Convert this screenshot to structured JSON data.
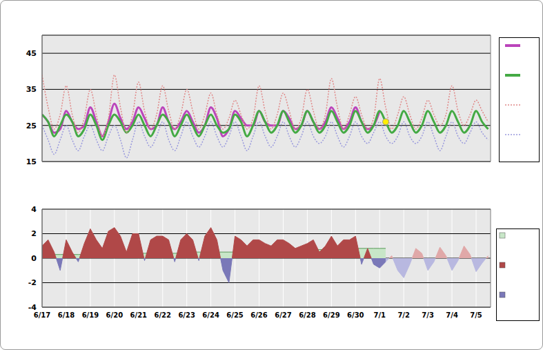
{
  "chart_data": [
    {
      "type": "line",
      "x": [
        0,
        0.25,
        0.5,
        0.75,
        1,
        1.25,
        1.5,
        1.75,
        2,
        2.25,
        2.5,
        2.75,
        3,
        3.25,
        3.5,
        3.75,
        4,
        4.25,
        4.5,
        4.75,
        5,
        5.25,
        5.5,
        5.75,
        6,
        6.25,
        6.5,
        6.75,
        7,
        7.25,
        7.5,
        7.75,
        8,
        8.25,
        8.5,
        8.75,
        9,
        9.25,
        9.5,
        9.75,
        10,
        10.25,
        10.5,
        10.75,
        11,
        11.25,
        11.5,
        11.75,
        12,
        12.25,
        12.5,
        12.75,
        13,
        13.25,
        13.5,
        13.75,
        14,
        14.25,
        14.5,
        14.75,
        15,
        15.25,
        15.5,
        15.75,
        16,
        16.25,
        16.5,
        16.75,
        17,
        17.25,
        17.5,
        17.75,
        18,
        18.25,
        18.5
      ],
      "xlim": [
        0,
        18.6
      ],
      "xticks": [
        {
          "value": 0,
          "label": "6/17"
        },
        {
          "value": 1,
          "label": "6/18"
        },
        {
          "value": 2,
          "label": "6/19"
        },
        {
          "value": 3,
          "label": "6/20"
        },
        {
          "value": 4,
          "label": "6/21"
        },
        {
          "value": 5,
          "label": "6/22"
        },
        {
          "value": 6,
          "label": "6/23"
        },
        {
          "value": 7,
          "label": "6/24"
        },
        {
          "value": 8,
          "label": "6/25"
        },
        {
          "value": 9,
          "label": "6/26"
        },
        {
          "value": 10,
          "label": "6/27"
        },
        {
          "value": 11,
          "label": "6/28"
        },
        {
          "value": 12,
          "label": "6/29"
        },
        {
          "value": 13,
          "label": "6/30"
        },
        {
          "value": 14,
          "label": "7/1"
        },
        {
          "value": 15,
          "label": "7/2"
        },
        {
          "value": 16,
          "label": "7/3"
        },
        {
          "value": 17,
          "label": "7/4"
        },
        {
          "value": 18,
          "label": "7/5"
        }
      ],
      "ylim": [
        15,
        50
      ],
      "yticks": [
        15,
        25,
        35,
        45
      ],
      "grid": true,
      "tick_labels": "y",
      "series": [
        {
          "color": "#bb44bb",
          "line_style": "solid",
          "values": [
            28,
            26,
            23,
            24,
            29,
            26,
            24,
            25,
            30,
            26,
            22,
            26,
            31,
            27,
            24,
            26,
            30,
            27,
            24,
            25,
            30,
            26,
            24,
            26,
            29,
            26,
            23,
            25,
            30,
            27,
            22,
            24,
            29,
            27,
            25,
            25,
            29,
            26,
            25,
            25,
            29,
            27,
            24,
            25,
            29,
            26,
            24,
            26,
            30,
            27,
            24,
            26,
            30,
            26,
            24,
            25,
            29,
            null,
            null,
            null,
            null,
            null,
            null,
            null,
            null,
            null,
            null,
            null,
            null,
            null,
            null,
            null,
            null,
            null,
            null
          ]
        },
        {
          "color": "#44aa44",
          "line_style": "solid",
          "values": [
            28,
            26,
            22,
            25,
            28,
            26,
            22,
            24,
            28,
            25,
            21,
            25,
            28,
            26,
            23,
            25,
            28,
            25,
            22,
            25,
            28,
            26,
            22,
            25,
            28,
            25,
            22,
            25,
            28,
            25,
            23,
            24,
            28,
            26,
            22,
            25,
            29,
            26,
            23,
            25,
            29,
            26,
            23,
            25,
            29,
            26,
            23,
            25,
            29,
            26,
            23,
            25,
            29,
            26,
            23,
            25,
            29,
            26,
            23,
            25,
            29,
            26,
            23,
            25,
            29,
            26,
            23,
            25,
            29,
            26,
            23,
            25,
            29,
            26,
            24
          ]
        },
        {
          "color": "#e08888",
          "line_style": "dotted",
          "values": [
            39,
            30,
            24,
            28,
            36,
            28,
            23,
            27,
            35,
            28,
            22,
            27,
            39,
            30,
            23,
            28,
            37,
            29,
            24,
            28,
            36,
            29,
            24,
            28,
            35,
            29,
            24,
            28,
            34,
            28,
            24,
            27,
            32,
            28,
            24,
            27,
            36,
            29,
            24,
            28,
            34,
            29,
            24,
            27,
            35,
            29,
            24,
            28,
            38,
            30,
            24,
            28,
            33,
            28,
            24,
            27,
            38,
            30,
            24,
            28,
            33,
            28,
            24,
            27,
            32,
            28,
            25,
            28,
            36,
            29,
            25,
            28,
            32,
            29,
            26
          ]
        },
        {
          "color": "#9999dd",
          "line_style": "dotted",
          "values": [
            25,
            21,
            17,
            21,
            25,
            21,
            18,
            22,
            25,
            21,
            18,
            22,
            25,
            21,
            16,
            21,
            26,
            22,
            19,
            22,
            26,
            21,
            18,
            22,
            26,
            22,
            19,
            22,
            26,
            22,
            19,
            22,
            26,
            22,
            18,
            22,
            26,
            22,
            19,
            22,
            26,
            22,
            19,
            22,
            26,
            22,
            20,
            22,
            26,
            22,
            19,
            22,
            26,
            22,
            20,
            23,
            26,
            22,
            20,
            22,
            26,
            22,
            20,
            22,
            26,
            22,
            18,
            22,
            26,
            22,
            20,
            23,
            26,
            23,
            21
          ]
        },
        {
          "type": "scatter",
          "color": "#ffee00",
          "marker": "circle",
          "values": [
            null,
            null,
            null,
            null,
            null,
            null,
            null,
            null,
            null,
            null,
            null,
            null,
            null,
            null,
            null,
            null,
            null,
            null,
            null,
            null,
            null,
            null,
            null,
            null,
            null,
            null,
            null,
            null,
            null,
            null,
            null,
            null,
            null,
            null,
            null,
            null,
            null,
            null,
            null,
            null,
            null,
            null,
            null,
            null,
            null,
            null,
            null,
            null,
            null,
            null,
            null,
            null,
            null,
            null,
            null,
            null,
            null,
            26,
            null,
            null,
            null,
            null,
            null,
            null,
            null,
            null,
            null,
            null,
            null,
            null,
            null,
            null,
            null,
            null,
            null
          ]
        }
      ]
    },
    {
      "type": "area",
      "x": [
        0,
        0.25,
        0.5,
        0.75,
        1,
        1.25,
        1.5,
        1.75,
        2,
        2.25,
        2.5,
        2.75,
        3,
        3.25,
        3.5,
        3.75,
        4,
        4.25,
        4.5,
        4.75,
        5,
        5.25,
        5.5,
        5.75,
        6,
        6.25,
        6.5,
        6.75,
        7,
        7.25,
        7.5,
        7.75,
        8,
        8.25,
        8.5,
        8.75,
        9,
        9.25,
        9.5,
        9.75,
        10,
        10.25,
        10.5,
        10.75,
        11,
        11.25,
        11.5,
        11.75,
        12,
        12.25,
        12.5,
        12.75,
        13,
        13.25,
        13.5,
        13.75,
        14,
        14.25,
        14.5,
        14.75,
        15,
        15.25,
        15.5,
        15.75,
        16,
        16.25,
        16.5,
        16.75,
        17,
        17.25,
        17.5,
        17.75,
        18,
        18.25,
        18.5
      ],
      "xlim": [
        0,
        18.6
      ],
      "xticks": [
        {
          "value": 0,
          "label": "6/17"
        },
        {
          "value": 1,
          "label": "6/18"
        },
        {
          "value": 2,
          "label": "6/19"
        },
        {
          "value": 3,
          "label": "6/20"
        },
        {
          "value": 4,
          "label": "6/21"
        },
        {
          "value": 5,
          "label": "6/22"
        },
        {
          "value": 6,
          "label": "6/23"
        },
        {
          "value": 7,
          "label": "6/24"
        },
        {
          "value": 8,
          "label": "6/25"
        },
        {
          "value": 9,
          "label": "6/26"
        },
        {
          "value": 10,
          "label": "6/27"
        },
        {
          "value": 11,
          "label": "6/28"
        },
        {
          "value": 12,
          "label": "6/29"
        },
        {
          "value": 13,
          "label": "6/30"
        },
        {
          "value": 14,
          "label": "7/1"
        },
        {
          "value": 15,
          "label": "7/2"
        },
        {
          "value": 16,
          "label": "7/3"
        },
        {
          "value": 17,
          "label": "7/4"
        },
        {
          "value": 18,
          "label": "7/5"
        }
      ],
      "ylim": [
        -4,
        4
      ],
      "yticks": [
        -4,
        -2,
        0,
        2,
        4
      ],
      "grid": true,
      "series": [
        {
          "type": "step",
          "color": "#c8e6c8",
          "values": [
            0.3,
            0.3,
            0.3,
            0.3,
            0.3,
            0.3,
            0.3,
            0.3,
            0.3,
            0.3,
            0.3,
            0.3,
            0.4,
            0.4,
            0.4,
            0.4,
            0.4,
            0.4,
            0.4,
            0.4,
            0.4,
            0.4,
            0.4,
            0.4,
            0.5,
            0.5,
            0.5,
            0.5,
            0.5,
            0.5,
            0.5,
            0.5,
            0.5,
            0.5,
            0.5,
            0.5,
            0.6,
            0.6,
            0.6,
            0.6,
            0.6,
            0.6,
            0.6,
            0.6,
            0.7,
            0.7,
            0.7,
            0.7,
            0.7,
            0.7,
            0.7,
            0.7,
            0.8,
            0.8,
            0.8,
            0.8,
            0.8,
            0.8,
            null,
            null,
            null,
            null,
            null,
            null,
            null,
            null,
            null,
            null,
            null,
            null,
            null,
            null,
            null,
            null,
            null
          ]
        },
        {
          "type": "area",
          "colors": [
            "#b04848",
            "#7a78b8"
          ],
          "values": [
            1.0,
            1.5,
            0.5,
            -1.0,
            1.5,
            0.5,
            -0.3,
            1.2,
            2.4,
            1.5,
            0.8,
            2.2,
            2.5,
            1.8,
            0.5,
            2.0,
            2.0,
            -0.2,
            1.5,
            1.8,
            1.8,
            1.5,
            -0.3,
            1.5,
            2.0,
            1.5,
            -0.2,
            1.8,
            2.5,
            1.5,
            -1.0,
            -2.0,
            1.8,
            1.5,
            1.0,
            1.5,
            1.5,
            1.2,
            1.0,
            1.5,
            1.5,
            1.2,
            0.8,
            1.0,
            1.2,
            1.5,
            0.5,
            1.0,
            1.8,
            1.0,
            1.5,
            1.5,
            1.8,
            -0.5,
            0.8,
            -0.5,
            -0.8,
            -0.3,
            null,
            null,
            null,
            null,
            null,
            null,
            null,
            null,
            null,
            null,
            null,
            null,
            null,
            null,
            null,
            null,
            null
          ]
        },
        {
          "type": "area",
          "colors": [
            "#e0a8a8",
            "#b8b8e0"
          ],
          "values": [
            null,
            null,
            null,
            null,
            null,
            null,
            null,
            null,
            null,
            null,
            null,
            null,
            null,
            null,
            null,
            null,
            null,
            null,
            null,
            null,
            null,
            null,
            null,
            null,
            null,
            null,
            null,
            null,
            null,
            null,
            null,
            null,
            null,
            null,
            null,
            null,
            null,
            null,
            null,
            null,
            null,
            null,
            null,
            null,
            null,
            null,
            null,
            null,
            null,
            null,
            null,
            null,
            null,
            null,
            null,
            null,
            null,
            -0.3,
            0.2,
            -1.0,
            -1.6,
            -0.5,
            0.8,
            0.4,
            -1.0,
            -0.3,
            0.9,
            0.2,
            -1.0,
            -0.2,
            1.0,
            0.3,
            -1.1,
            -0.4,
            0.2
          ]
        }
      ]
    }
  ]
}
